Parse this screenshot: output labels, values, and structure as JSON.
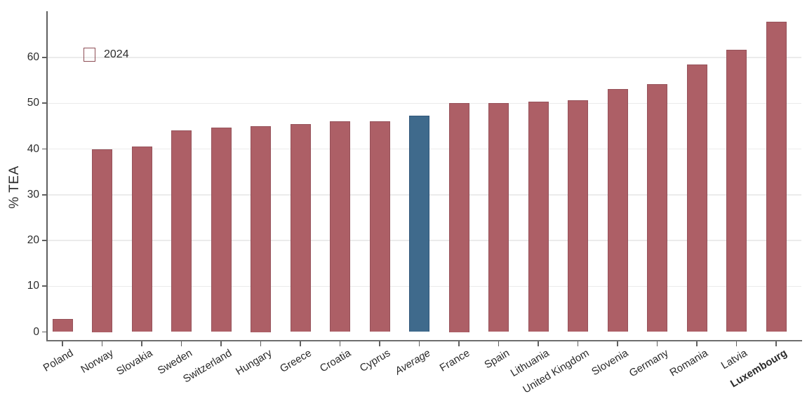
{
  "chart_data": {
    "type": "bar",
    "title": "",
    "xlabel": "",
    "ylabel": "% TEA",
    "legend": {
      "label": "2024",
      "position": "top-left"
    },
    "categories": [
      "Poland",
      "Norway",
      "Slovakia",
      "Sweden",
      "Switzerland",
      "Hungary",
      "Greece",
      "Croatia",
      "Cyprus",
      "Average",
      "France",
      "Spain",
      "Lithuania",
      "United Kingdom",
      "Slovenia",
      "Germany",
      "Romania",
      "Latvia",
      "Luxembourg"
    ],
    "values": [
      2.9,
      40.0,
      40.5,
      44.0,
      44.6,
      45.0,
      45.5,
      46.0,
      46.1,
      47.3,
      50.0,
      50.1,
      50.3,
      50.7,
      53.1,
      54.1,
      58.5,
      61.7,
      67.8
    ],
    "yticks": [
      0,
      10,
      20,
      30,
      40,
      50,
      60
    ],
    "ylim": [
      0,
      70
    ],
    "grid": true,
    "highlight_category": "Average",
    "label_styles": {
      "Average": "italic",
      "Luxembourg": "bold"
    },
    "colors": {
      "bar_fill": "#ad5f66",
      "bar_border": "#96525a",
      "highlight_fill": "#3f6a8c",
      "highlight_border": "#30567a",
      "grid": "#ebebeb",
      "axis": "#6e6e6e",
      "tick": "#5f5f5f",
      "text": "#2b2b2b"
    }
  }
}
